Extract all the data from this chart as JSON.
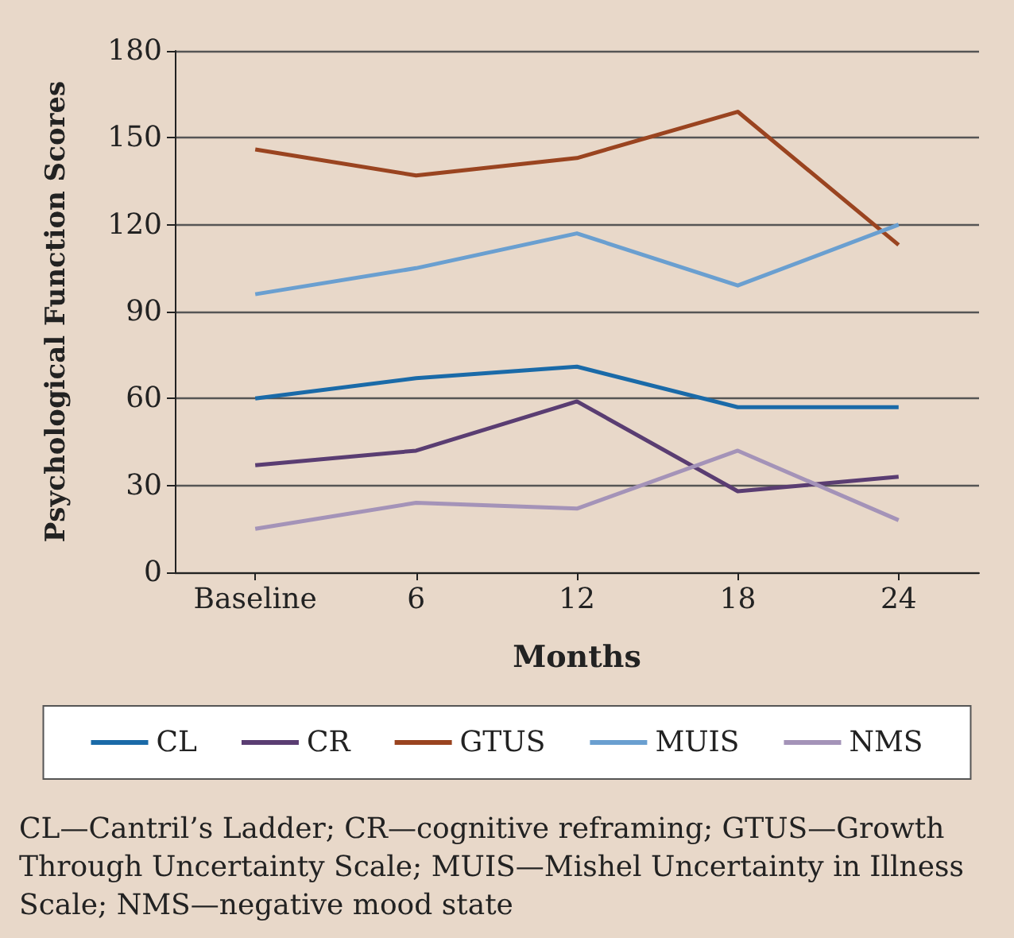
{
  "chart_data": {
    "type": "line",
    "xlabel": "Months",
    "ylabel": "Psychological Function Scores",
    "categories": [
      "Baseline",
      "6",
      "12",
      "18",
      "24"
    ],
    "series": [
      {
        "name": "CL",
        "color": "#1a6aa8",
        "values": [
          60,
          67,
          71,
          57,
          57
        ]
      },
      {
        "name": "CR",
        "color": "#5a3d72",
        "values": [
          37,
          42,
          59,
          28,
          33
        ]
      },
      {
        "name": "GTUS",
        "color": "#9a4420",
        "values": [
          146,
          137,
          143,
          159,
          113
        ]
      },
      {
        "name": "MUIS",
        "color": "#6a9fd0",
        "values": [
          96,
          105,
          117,
          99,
          120
        ]
      },
      {
        "name": "NMS",
        "color": "#a493b8",
        "values": [
          15,
          24,
          22,
          42,
          18
        ]
      }
    ],
    "ylim": [
      0,
      180
    ],
    "yticks": [
      0,
      30,
      60,
      90,
      120,
      150,
      180
    ],
    "grid": "y",
    "legend": "bottom",
    "marker": "none",
    "line_style": "solid",
    "annotations": [
      "CL—Cantril’s Ladder; CR—cognitive reframing; GTUS—Growth Through Uncertainty Scale; MUIS—Mishel Uncertainty in Illness Scale; NMS—negative mood state"
    ]
  }
}
